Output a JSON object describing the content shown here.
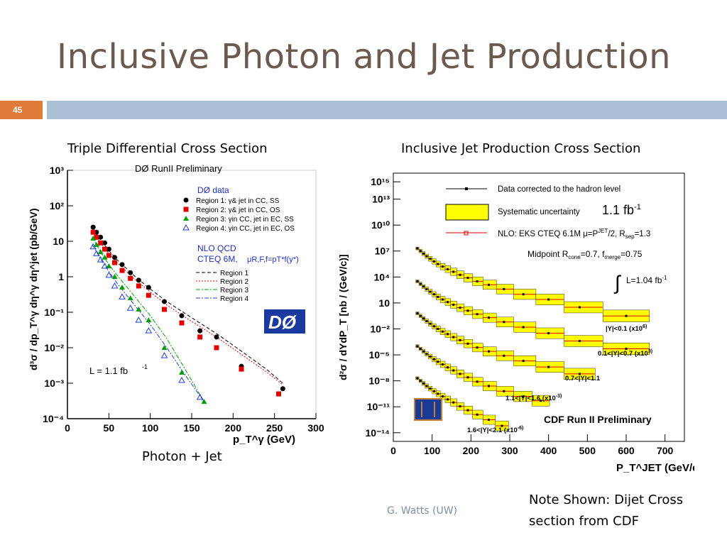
{
  "slide": {
    "title": "Inclusive Photon and Jet Production",
    "number": "45",
    "left_caption": "Triple Differential Cross Section",
    "right_caption": "Inclusive Jet Production Cross Section",
    "bottom_caption": "Photon + Jet",
    "footer": "G. Watts (UW)",
    "note": "Note Shown: Dijet Cross section from CDF"
  },
  "colors": {
    "title": "#6b5a4f",
    "number_bar": "#e07b39",
    "rule_bar": "#a9bfd6",
    "region1": "#000000",
    "region2": "#e00000",
    "region3": "#00a000",
    "region4": "#2040d0",
    "systematic": "#ffff00"
  },
  "chart_data": [
    {
      "type": "scatter",
      "title": "DØ RunII Preliminary",
      "xlabel": "p_T^γ (GeV)",
      "ylabel": "d³σ / dp_T^γ dη^γ dη^jet  (pb/GeV)",
      "xlim": [
        0,
        300
      ],
      "ylim_log10": [
        -4,
        3
      ],
      "x_ticks": [
        "0",
        "50",
        "100",
        "150",
        "200",
        "250",
        "300"
      ],
      "y_ticks": [
        "10⁻⁴",
        "10⁻³",
        "10⁻²",
        "10⁻¹",
        "1",
        "10",
        "10²",
        "10³"
      ],
      "legend_title": "DØ data",
      "luminosity": "L = 1.1 fb",
      "luminosity_exp": "-1",
      "theory_title": "NLO QCD",
      "theory_pdf": "CTEQ 6M,",
      "theory_scale": "μR,F,f=pT*f(y*)",
      "series": [
        {
          "name": "Region 1: γ& jet in CC, SS",
          "marker": "circle",
          "x": [
            31,
            35,
            40,
            45,
            50,
            57,
            66,
            76,
            86,
            98,
            117,
            138,
            160,
            180,
            210,
            260
          ],
          "y": [
            25,
            18,
            13,
            9,
            6,
            3.5,
            2.2,
            1.3,
            0.8,
            0.5,
            0.2,
            0.08,
            0.03,
            0.02,
            0.003,
            0.0007
          ]
        },
        {
          "name": "Region 2: γ& jet in CC, OS",
          "marker": "square",
          "x": [
            31,
            35,
            40,
            45,
            50,
            57,
            66,
            76,
            86,
            98,
            117,
            138,
            160,
            180,
            210,
            255
          ],
          "y": [
            18,
            13,
            9,
            6,
            4,
            2.5,
            1.5,
            0.9,
            0.55,
            0.3,
            0.12,
            0.05,
            0.02,
            0.01,
            0.0025,
            0.0005
          ]
        },
        {
          "name": "Region 3: γin CC, jet in EC, SS",
          "marker": "triangle",
          "x": [
            31,
            35,
            40,
            45,
            50,
            57,
            66,
            76,
            86,
            98,
            117,
            138,
            165
          ],
          "y": [
            12,
            8,
            5,
            3.5,
            2,
            1,
            0.5,
            0.25,
            0.12,
            0.06,
            0.01,
            0.002,
            0.0003
          ]
        },
        {
          "name": "Region 4: γin CC, jet in EC, OS",
          "marker": "open-triangle",
          "x": [
            31,
            35,
            40,
            45,
            50,
            57,
            66,
            76,
            86,
            98,
            117,
            138,
            160
          ],
          "y": [
            7,
            4.5,
            3,
            2,
            1.1,
            0.55,
            0.27,
            0.13,
            0.06,
            0.03,
            0.006,
            0.0012,
            0.0004
          ]
        }
      ],
      "theory_lines": [
        {
          "name": "Region 1",
          "style": "dashed-black",
          "x": [
            30,
            40,
            50,
            60,
            80,
            100,
            120,
            150,
            180,
            210,
            240,
            260
          ],
          "y": [
            25,
            11,
            5.5,
            3,
            1.1,
            0.45,
            0.2,
            0.07,
            0.025,
            0.008,
            0.0025,
            0.001
          ]
        },
        {
          "name": "Region 2",
          "style": "dotted-red",
          "x": [
            30,
            40,
            50,
            60,
            80,
            100,
            120,
            150,
            180,
            210,
            240,
            260
          ],
          "y": [
            20,
            9,
            4.5,
            2.5,
            0.9,
            0.37,
            0.16,
            0.055,
            0.02,
            0.0065,
            0.0021,
            0.0009
          ]
        },
        {
          "name": "Region 3",
          "style": "dashdot-green",
          "x": [
            30,
            40,
            50,
            60,
            80,
            100,
            120,
            140,
            165
          ],
          "y": [
            13,
            5,
            2.2,
            1.1,
            0.3,
            0.08,
            0.018,
            0.003,
            0.0003
          ]
        },
        {
          "name": "Region 4",
          "style": "dashdot-blue",
          "x": [
            30,
            40,
            50,
            60,
            80,
            100,
            120,
            140,
            165
          ],
          "y": [
            8,
            3.2,
            1.4,
            0.65,
            0.17,
            0.045,
            0.01,
            0.002,
            0.0003
          ]
        }
      ],
      "logo_text": "DØ"
    },
    {
      "type": "scatter",
      "title": "CDF Run II Preliminary",
      "xlabel": "P_T^JET (GeV/c)",
      "ylabel": "d²σ / dYdP_T  [nb / (GeV/c)]",
      "xlim": [
        0,
        750
      ],
      "ylim_log10": [
        -15,
        16
      ],
      "x_ticks": [
        "0",
        "100",
        "200",
        "300",
        "400",
        "500",
        "600",
        "700"
      ],
      "y_ticks": [
        "10⁻¹⁴",
        "10⁻¹¹",
        "10⁻⁸",
        "10⁻⁵",
        "10⁻²",
        "10",
        "10⁴",
        "10⁷",
        "10¹⁰",
        "10¹³",
        "10¹⁵"
      ],
      "legend": {
        "data": "Data corrected to the hadron level",
        "systematic": "Systematic uncertainty",
        "nlo": "NLO: EKS CTEQ 6.1M  μ=P",
        "nlo_sup": "JET",
        "nlo_tail": "/2, R",
        "nlo_sub": "sep",
        "nlo_end": "=1.3",
        "midpoint": "Midpoint  R",
        "midpoint_sub1": "cone",
        "midpoint_mid": "=0.7, f",
        "midpoint_sub2": "merge",
        "midpoint_end": "=0.75",
        "integral": "L=1.04 fb",
        "integral_exp": "-1"
      },
      "annotation": "1.1 fb",
      "annotation_exp": "-1",
      "series": [
        {
          "name": "|Y|<0.1 (x10",
          "name_exp": "6)",
          "x": [
            62,
            70,
            78,
            86,
            95,
            105,
            115,
            127,
            140,
            155,
            172,
            192,
            216,
            246,
            285,
            335,
            400,
            480,
            600
          ],
          "y_log10": [
            7.3,
            7.0,
            6.7,
            6.4,
            6.1,
            5.8,
            5.5,
            5.2,
            4.9,
            4.6,
            4.25,
            3.9,
            3.5,
            3.1,
            2.6,
            2.0,
            1.4,
            0.5,
            -0.5
          ]
        },
        {
          "name": "0.1<|Y|<0.7 (x10",
          "name_exp": "3)",
          "x": [
            62,
            70,
            78,
            86,
            95,
            105,
            115,
            127,
            140,
            155,
            172,
            192,
            216,
            246,
            285,
            335,
            400,
            480,
            600
          ],
          "y_log10": [
            3.5,
            3.2,
            2.9,
            2.6,
            2.3,
            2.0,
            1.7,
            1.4,
            1.1,
            0.8,
            0.45,
            0.1,
            -0.3,
            -0.7,
            -1.2,
            -1.8,
            -2.5,
            -3.4,
            -4.3
          ]
        },
        {
          "name": "0.7<|Y|<1.1",
          "name_exp": "",
          "x": [
            62,
            70,
            78,
            86,
            95,
            105,
            115,
            127,
            140,
            155,
            172,
            192,
            216,
            246,
            285,
            335,
            400,
            480
          ],
          "y_log10": [
            -0.2,
            -0.5,
            -0.8,
            -1.1,
            -1.4,
            -1.7,
            -2.0,
            -2.3,
            -2.6,
            -2.95,
            -3.3,
            -3.7,
            -4.15,
            -4.6,
            -5.1,
            -5.7,
            -6.4,
            -7.2
          ]
        },
        {
          "name": "1.1<|Y|<1.6 (x10",
          "name_exp": "-3)",
          "x": [
            62,
            70,
            78,
            86,
            95,
            105,
            115,
            127,
            140,
            155,
            172,
            192,
            216,
            246,
            285,
            335,
            380
          ],
          "y_log10": [
            -4.0,
            -4.3,
            -4.6,
            -4.9,
            -5.2,
            -5.5,
            -5.8,
            -6.1,
            -6.45,
            -6.8,
            -7.2,
            -7.6,
            -8.1,
            -8.6,
            -9.2,
            -9.8,
            -10.3
          ]
        },
        {
          "name": "1.6<|Y|<2.1 (x10",
          "name_exp": "-6)",
          "x": [
            62,
            70,
            78,
            86,
            95,
            105,
            115,
            127,
            140,
            155,
            172,
            192,
            216,
            246,
            280
          ],
          "y_log10": [
            -7.7,
            -8.0,
            -8.3,
            -8.6,
            -8.9,
            -9.2,
            -9.5,
            -9.8,
            -10.15,
            -10.5,
            -10.95,
            -11.4,
            -11.9,
            -12.5,
            -13.2
          ]
        }
      ]
    }
  ]
}
